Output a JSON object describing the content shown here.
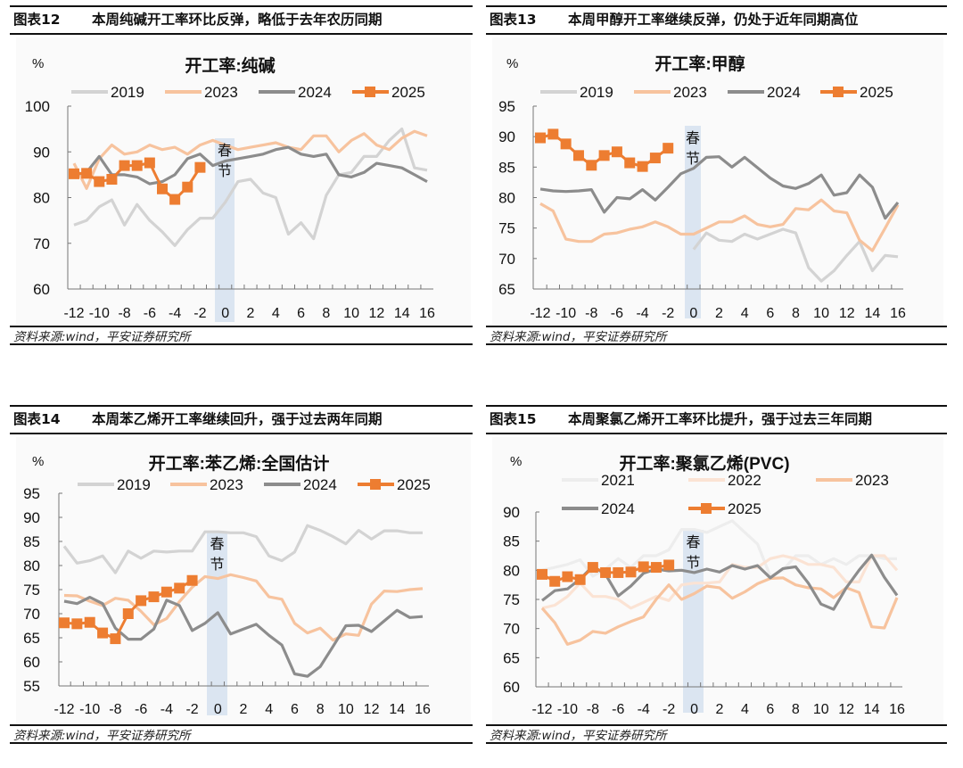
{
  "panels": [
    {
      "figure": "图表12",
      "caption": "本周纯碱开工率环比反弹，略低于去年农历同期",
      "source": "资料来源:wind，平安证券研究所"
    },
    {
      "figure": "图表13",
      "caption": "本周甲醇开工率继续反弹，仍处于近年同期高位",
      "source": "资料来源:wind，平安证券研究所"
    },
    {
      "figure": "图表14",
      "caption": "本周苯乙烯开工率继续回升，强于过去两年同期",
      "source": "资料来源:wind，平安证券研究所"
    },
    {
      "figure": "图表15",
      "caption": "本周聚氯乙烯开工率环比提升，强于过去三年同期",
      "source": "资料来源:wind，平安证券研究所"
    }
  ],
  "colors": {
    "2019": "#d3d3d3",
    "2021": "#ededed",
    "2022": "#fbe3d4",
    "2023": "#f7c39e",
    "2024": "#8c8c8c",
    "2025": "#ed7d31",
    "band": "#dbe5f1"
  },
  "chart_data": [
    {
      "type": "line",
      "title": "开工率:纯碱",
      "ylabel": "%",
      "ylim": [
        60,
        100
      ],
      "yticks": [
        60,
        70,
        80,
        90,
        100
      ],
      "x": [
        -12,
        -11,
        -10,
        -9,
        -8,
        -7,
        -6,
        -5,
        -4,
        -3,
        -2,
        -1,
        0,
        1,
        2,
        3,
        4,
        5,
        6,
        7,
        8,
        9,
        10,
        11,
        12,
        13,
        14,
        15,
        16
      ],
      "xticks": [
        -12,
        -10,
        -8,
        -6,
        -4,
        -2,
        0,
        2,
        4,
        6,
        8,
        10,
        12,
        14,
        16
      ],
      "band": {
        "label": [
          "春",
          "节"
        ],
        "x": 0
      },
      "legend": "top",
      "series": [
        {
          "name": "2019",
          "values": [
            74,
            75,
            78,
            79.5,
            74,
            78.5,
            75,
            72.5,
            69.5,
            73,
            75.5,
            75.5,
            79,
            83.5,
            84,
            81,
            80,
            72,
            74.5,
            71,
            80.5,
            85,
            85.5,
            89,
            89,
            92.5,
            95,
            86.5,
            86
          ]
        },
        {
          "name": "2023",
          "values": [
            87.5,
            82,
            88.5,
            91.5,
            89.5,
            90,
            91.5,
            90.5,
            91,
            89.5,
            91.5,
            92.5,
            91.5,
            90.5,
            91,
            91.5,
            92,
            91,
            90.5,
            93.5,
            93.5,
            90,
            92.5,
            94,
            91.5,
            90.5,
            93,
            94.5,
            93.5
          ]
        },
        {
          "name": "2024",
          "values": [
            85,
            85.5,
            89,
            85,
            85,
            84.5,
            83,
            83.5,
            85,
            88.5,
            89.5,
            87,
            88,
            88.5,
            89,
            89.5,
            90.5,
            91,
            89.5,
            89,
            89.5,
            85,
            84.5,
            85.5,
            87.5,
            87,
            86.5,
            85,
            83.5
          ]
        },
        {
          "name": "2025",
          "values": [
            85.2,
            85.3,
            83.5,
            84,
            87,
            87,
            87.6,
            81.9,
            79.6,
            82.3,
            86.6,
            null,
            null,
            null,
            null,
            null,
            null,
            null,
            null,
            null,
            null,
            null,
            null,
            null,
            null,
            null,
            null,
            null,
            null
          ]
        }
      ]
    },
    {
      "type": "line",
      "title": "开工率:甲醇",
      "ylabel": "%",
      "ylim": [
        65,
        95
      ],
      "yticks": [
        65,
        70,
        75,
        80,
        85,
        90,
        95
      ],
      "x": [
        -12,
        -11,
        -10,
        -9,
        -8,
        -7,
        -6,
        -5,
        -4,
        -3,
        -2,
        -1,
        0,
        1,
        2,
        3,
        4,
        5,
        6,
        7,
        8,
        9,
        10,
        11,
        12,
        13,
        14,
        15,
        16
      ],
      "xticks": [
        -12,
        -10,
        -8,
        -6,
        -4,
        -2,
        0,
        2,
        4,
        6,
        8,
        10,
        12,
        14,
        16
      ],
      "band": {
        "label": [
          "春",
          "节"
        ],
        "x": 0
      },
      "legend": "top",
      "series": [
        {
          "name": "2019",
          "values": [
            null,
            null,
            null,
            null,
            null,
            null,
            null,
            null,
            null,
            null,
            null,
            null,
            71.5,
            74.2,
            73,
            72.8,
            74,
            73.2,
            74,
            74.8,
            74.2,
            68.5,
            66.3,
            68,
            70.5,
            72.8,
            68,
            70.5,
            70.3
          ]
        },
        {
          "name": "2023",
          "values": [
            79,
            77.8,
            73.2,
            72.8,
            72.8,
            74,
            74.2,
            74.8,
            75.2,
            76,
            75.2,
            74,
            74,
            75,
            76,
            76,
            77,
            75.6,
            75.2,
            75.6,
            78.2,
            78,
            79.6,
            77.8,
            77.5,
            73,
            71.3,
            75,
            78.8
          ]
        },
        {
          "name": "2024",
          "values": [
            81.4,
            81.1,
            81,
            81.1,
            81.3,
            77.6,
            80,
            79.8,
            81.3,
            79.6,
            81.7,
            83.9,
            84.8,
            86.6,
            86.7,
            85,
            86.6,
            84.9,
            83.2,
            81.9,
            81.5,
            82.3,
            83.7,
            80.4,
            80.8,
            83.7,
            81.7,
            76.6,
            79.2
          ]
        },
        {
          "name": "2025",
          "values": [
            89.8,
            90.4,
            88.8,
            86.9,
            85.3,
            86.9,
            87.5,
            85.7,
            85.1,
            86.5,
            88.1,
            null,
            null,
            null,
            null,
            null,
            null,
            null,
            null,
            null,
            null,
            null,
            null,
            null,
            null,
            null,
            null,
            null,
            null
          ]
        }
      ]
    },
    {
      "type": "line",
      "title": "开工率:苯乙烯:全国估计",
      "ylabel": "%",
      "ylim": [
        55,
        95
      ],
      "yticks": [
        55,
        60,
        65,
        70,
        75,
        80,
        85,
        90,
        95
      ],
      "x": [
        -12,
        -11,
        -10,
        -9,
        -8,
        -7,
        -6,
        -5,
        -4,
        -3,
        -2,
        -1,
        0,
        1,
        2,
        3,
        4,
        5,
        6,
        7,
        8,
        9,
        10,
        11,
        12,
        13,
        14,
        15,
        16
      ],
      "xticks": [
        -12,
        -10,
        -8,
        -6,
        -4,
        -2,
        0,
        2,
        4,
        6,
        8,
        10,
        12,
        14,
        16
      ],
      "band": {
        "label": [
          "春",
          "节"
        ],
        "x": 0
      },
      "legend": "top",
      "series": [
        {
          "name": "2019",
          "values": [
            84,
            80.5,
            81,
            82,
            78.5,
            83,
            81.5,
            83,
            82.8,
            83,
            83,
            87,
            87,
            86.8,
            86.8,
            86,
            82,
            81,
            82.8,
            88.3,
            87.3,
            86,
            84.5,
            87.3,
            85.5,
            87.2,
            87.2,
            86.8,
            86.8
          ]
        },
        {
          "name": "2023",
          "values": [
            73.8,
            73.7,
            72.6,
            71.7,
            73.2,
            72.8,
            70.5,
            67.7,
            69,
            72.5,
            75.5,
            77.7,
            77.3,
            78.1,
            77.5,
            76.8,
            73.5,
            73,
            68,
            66,
            67,
            64.5,
            65.8,
            65.5,
            72,
            74.7,
            74.6,
            75,
            75.2
          ]
        },
        {
          "name": "2024",
          "values": [
            72.6,
            72.1,
            73.4,
            72.1,
            67,
            64.7,
            64.7,
            66.8,
            72.8,
            71.7,
            66.5,
            68,
            70.2,
            65.8,
            66.8,
            67.8,
            65.5,
            63.5,
            57.5,
            57,
            59,
            63.2,
            67.5,
            67.6,
            66.3,
            68.5,
            70.7,
            69.2,
            69.4
          ]
        },
        {
          "name": "2025",
          "values": [
            68.1,
            67.9,
            68.2,
            66,
            64.8,
            70,
            72.7,
            73.5,
            74.5,
            75.3,
            76.9,
            null,
            null,
            null,
            null,
            null,
            null,
            null,
            null,
            null,
            null,
            null,
            null,
            null,
            null,
            null,
            null,
            null,
            null
          ]
        }
      ]
    },
    {
      "type": "line",
      "title": "开工率:聚氯乙烯(PVC)",
      "ylabel": "%",
      "ylim": [
        60,
        90
      ],
      "yticks": [
        60,
        65,
        70,
        75,
        80,
        85,
        90
      ],
      "x": [
        -12,
        -11,
        -10,
        -9,
        -8,
        -7,
        -6,
        -5,
        -4,
        -3,
        -2,
        -1,
        0,
        1,
        2,
        3,
        4,
        5,
        6,
        7,
        8,
        9,
        10,
        11,
        12,
        13,
        14,
        15,
        16
      ],
      "xticks": [
        -12,
        -10,
        -8,
        -6,
        -4,
        -2,
        0,
        2,
        4,
        6,
        8,
        10,
        12,
        14,
        16
      ],
      "band": {
        "label": [
          "春",
          "节"
        ],
        "x": 0
      },
      "legend": "top",
      "series": [
        {
          "name": "2021",
          "values": [
            80,
            80.5,
            81,
            81.8,
            79,
            80.2,
            82,
            80.5,
            82.5,
            82.5,
            83.5,
            87,
            87,
            86.5,
            87.5,
            88.5,
            86.5,
            84.5,
            79,
            80,
            82.5,
            82.5,
            81,
            82,
            81,
            82.5,
            82.5,
            82,
            82
          ]
        },
        {
          "name": "2022",
          "values": [
            73.5,
            74,
            75.5,
            77.8,
            75.5,
            75.5,
            75,
            73.5,
            74.5,
            75.5,
            74.8,
            77.5,
            77.8,
            77.8,
            78,
            81,
            80.5,
            80.5,
            82,
            82.5,
            82,
            81,
            81,
            80.5,
            78,
            78,
            82.5,
            82.5,
            80
          ]
        },
        {
          "name": "2023",
          "values": [
            73.5,
            71,
            67.3,
            68,
            69.5,
            69.2,
            70.3,
            71.2,
            72,
            75,
            77.5,
            75,
            76,
            77.3,
            77,
            75.2,
            76.3,
            77.7,
            78.6,
            78.7,
            77.5,
            77,
            76.8,
            75.3,
            77,
            76.2,
            70.3,
            70.1,
            75.3
          ]
        },
        {
          "name": "2024",
          "values": [
            74.8,
            76.5,
            76.8,
            78.5,
            80.7,
            79.3,
            75.6,
            77.3,
            79.5,
            80.2,
            79.9,
            80,
            79.6,
            80.2,
            79.7,
            80.8,
            80.2,
            80.8,
            78.7,
            80.3,
            80.6,
            77.8,
            74.2,
            73.3,
            77,
            80,
            82.6,
            78.8,
            75.7
          ]
        },
        {
          "name": "2025",
          "values": [
            79.3,
            78.1,
            78.9,
            78.4,
            80.5,
            79.6,
            79.6,
            79.7,
            80.6,
            80.5,
            80.9,
            null,
            null,
            null,
            null,
            null,
            null,
            null,
            null,
            null,
            null,
            null,
            null,
            null,
            null,
            null,
            null,
            null,
            null
          ]
        }
      ]
    }
  ]
}
